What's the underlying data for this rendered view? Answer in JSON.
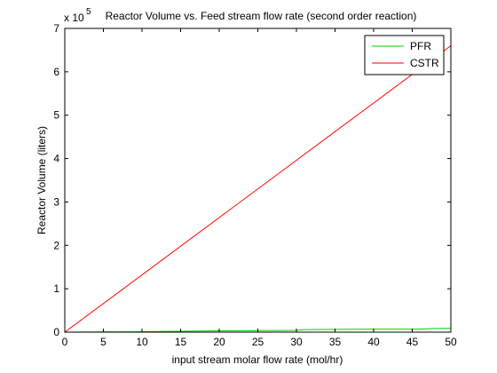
{
  "chart_data": {
    "type": "line",
    "title": "Reactor Volume vs. Feed stream flow rate (second order reaction)",
    "xlabel": "input stream molar flow rate (mol/hr)",
    "ylabel": "Reactor Volume (liters)",
    "y_exponent_base": "x 10",
    "y_exponent_power": "5",
    "xlim": [
      0,
      50
    ],
    "ylim": [
      0,
      7
    ],
    "xticks": [
      0,
      5,
      10,
      15,
      20,
      25,
      30,
      35,
      40,
      45,
      50
    ],
    "yticks": [
      0,
      1,
      2,
      3,
      4,
      5,
      6,
      7
    ],
    "grid": false,
    "legend_position": "top-right",
    "series": [
      {
        "name": "PFR",
        "color": "#00cc00",
        "x": [
          0,
          10,
          20,
          30,
          31,
          40,
          46,
          47,
          50
        ],
        "y": [
          0,
          0.01,
          0.03,
          0.04,
          0.06,
          0.07,
          0.07,
          0.08,
          0.09
        ]
      },
      {
        "name": "CSTR",
        "color": "#ff0000",
        "x": [
          0,
          50
        ],
        "y": [
          0,
          6.6
        ]
      }
    ]
  }
}
